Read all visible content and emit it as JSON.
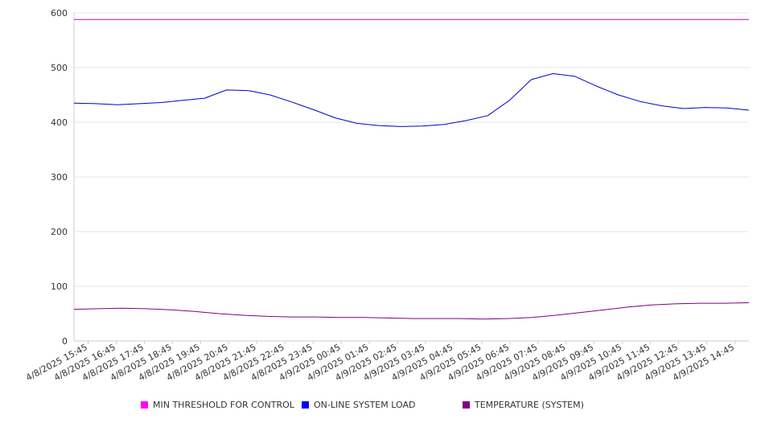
{
  "chart_data": {
    "type": "line",
    "title": "",
    "xlabel": "",
    "ylabel": "",
    "ylim": [
      0,
      600
    ],
    "y_ticks": [
      0,
      100,
      200,
      300,
      400,
      500,
      600
    ],
    "x_ticks": [
      "4/8/2025 15:45",
      "4/8/2025 16:45",
      "4/8/2025 17:45",
      "4/8/2025 18:45",
      "4/8/2025 19:45",
      "4/8/2025 20:45",
      "4/8/2025 21:45",
      "4/8/2025 22:45",
      "4/8/2025 23:45",
      "4/9/2025 00:45",
      "4/9/2025 01:45",
      "4/9/2025 02:45",
      "4/9/2025 03:45",
      "4/9/2025 04:45",
      "4/9/2025 05:45",
      "4/9/2025 06:45",
      "4/9/2025 07:45",
      "4/9/2025 08:45",
      "4/9/2025 09:45",
      "4/9/2025 10:45",
      "4/9/2025 11:45",
      "4/9/2025 12:45",
      "4/9/2025 13:45",
      "4/9/2025 14:45"
    ],
    "x_domain": [
      "4/8/2025 15:15",
      "4/9/2025 15:15"
    ],
    "grid": true,
    "legend_position": "bottom",
    "series": [
      {
        "name": "MIN THRESHOLD FOR CONTROL",
        "color": "#cc00cc",
        "values": [
          588,
          588,
          588,
          588,
          588,
          588,
          588,
          588,
          588,
          588,
          588,
          588,
          588,
          588,
          588,
          588,
          588,
          588,
          588,
          588,
          588,
          588,
          588,
          588,
          588
        ]
      },
      {
        "name": "ON-LINE SYSTEM LOAD",
        "color": "#0000cc",
        "values": [
          435,
          434,
          432,
          434,
          436,
          440,
          444,
          459,
          458,
          450,
          437,
          423,
          408,
          398,
          394,
          392,
          393,
          396,
          403,
          412,
          440,
          478,
          489,
          484,
          466,
          450,
          438,
          430,
          425,
          427,
          426,
          422
        ]
      },
      {
        "name": "TEMPERATURE (SYSTEM)",
        "color": "#800080",
        "values": [
          58,
          59,
          60,
          59,
          57,
          54,
          50,
          47,
          45,
          44,
          44,
          43,
          43,
          42,
          41,
          41,
          41,
          40,
          41,
          43,
          47,
          52,
          57,
          62,
          66,
          68,
          69,
          69,
          70
        ]
      }
    ]
  }
}
